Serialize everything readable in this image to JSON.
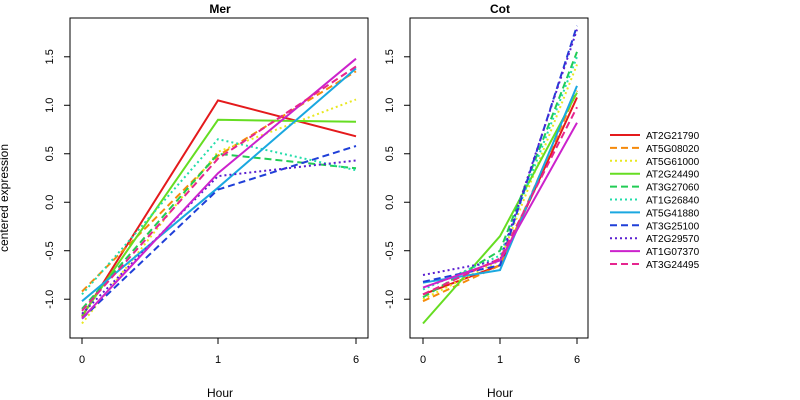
{
  "chart_data": {
    "type": "line",
    "ylabel": "centered expression",
    "x_categories": [
      "0",
      "1",
      "6"
    ],
    "legend": {
      "placement": "right",
      "entries": [
        {
          "name": "AT2G21790",
          "color": "#e41a1c",
          "dash": "solid"
        },
        {
          "name": "AT5G08020",
          "color": "#f58a0b",
          "dash": "dashed"
        },
        {
          "name": "AT5G61000",
          "color": "#e8e820",
          "dash": "dotted"
        },
        {
          "name": "AT2G24490",
          "color": "#66dd22",
          "dash": "solid"
        },
        {
          "name": "AT3G27060",
          "color": "#22cc55",
          "dash": "dashed"
        },
        {
          "name": "AT1G26840",
          "color": "#22ddaa",
          "dash": "dotted"
        },
        {
          "name": "AT5G41880",
          "color": "#1aa8e0",
          "dash": "solid"
        },
        {
          "name": "AT3G25100",
          "color": "#1f3fd8",
          "dash": "dashed"
        },
        {
          "name": "AT2G29570",
          "color": "#5a1fd0",
          "dash": "dotted"
        },
        {
          "name": "AT1G07370",
          "color": "#cc22cc",
          "dash": "solid"
        },
        {
          "name": "AT3G24495",
          "color": "#e6258f",
          "dash": "dashed"
        }
      ]
    },
    "panels": [
      {
        "title": "Mer",
        "xlabel": "Hour",
        "ylim": [
          -1.4,
          1.9
        ],
        "yticks": [
          "-1.0",
          "-0.5",
          "0.0",
          "0.5",
          "1.0",
          "1.5"
        ],
        "series": [
          {
            "name": "AT2G21790",
            "values": [
              -1.18,
              1.05,
              0.68
            ]
          },
          {
            "name": "AT5G08020",
            "values": [
              -0.92,
              0.48,
              1.35
            ]
          },
          {
            "name": "AT5G61000",
            "values": [
              -1.25,
              0.52,
              1.06
            ]
          },
          {
            "name": "AT2G24490",
            "values": [
              -1.17,
              0.85,
              0.83
            ]
          },
          {
            "name": "AT3G27060",
            "values": [
              -1.1,
              0.5,
              0.35
            ]
          },
          {
            "name": "AT1G26840",
            "values": [
              -0.95,
              0.65,
              0.33
            ]
          },
          {
            "name": "AT5G41880",
            "values": [
              -1.02,
              0.15,
              1.38
            ]
          },
          {
            "name": "AT3G25100",
            "values": [
              -1.2,
              0.13,
              0.58
            ]
          },
          {
            "name": "AT2G29570",
            "values": [
              -1.15,
              0.27,
              0.43
            ]
          },
          {
            "name": "AT1G07370",
            "values": [
              -1.2,
              0.3,
              1.48
            ]
          },
          {
            "name": "AT3G24495",
            "values": [
              -1.12,
              0.45,
              1.4
            ]
          }
        ]
      },
      {
        "title": "Cot",
        "xlabel": "Hour",
        "ylim": [
          -1.4,
          1.9
        ],
        "yticks": [
          "-1.0",
          "-0.5",
          "0.0",
          "0.5",
          "1.0",
          "1.5"
        ],
        "series": [
          {
            "name": "AT2G21790",
            "values": [
              -0.95,
              -0.65,
              1.08
            ]
          },
          {
            "name": "AT5G08020",
            "values": [
              -1.02,
              -0.65,
              1.15
            ]
          },
          {
            "name": "AT5G61000",
            "values": [
              -1.0,
              -0.6,
              1.42
            ]
          },
          {
            "name": "AT2G24490",
            "values": [
              -1.25,
              -0.35,
              1.13
            ]
          },
          {
            "name": "AT3G27060",
            "values": [
              -0.98,
              -0.5,
              1.55
            ]
          },
          {
            "name": "AT1G26840",
            "values": [
              -0.9,
              -0.55,
              1.5
            ]
          },
          {
            "name": "AT5G41880",
            "values": [
              -0.83,
              -0.7,
              1.2
            ]
          },
          {
            "name": "AT3G25100",
            "values": [
              -0.82,
              -0.65,
              1.82
            ]
          },
          {
            "name": "AT2G29570",
            "values": [
              -0.75,
              -0.6,
              1.78
            ]
          },
          {
            "name": "AT1G07370",
            "values": [
              -0.88,
              -0.6,
              0.82
            ]
          },
          {
            "name": "AT3G24495",
            "values": [
              -0.95,
              -0.58,
              0.98
            ]
          }
        ]
      }
    ]
  }
}
